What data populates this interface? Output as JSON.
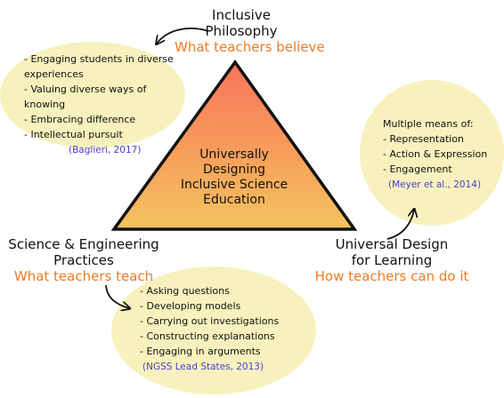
{
  "colors": {
    "triangle_top": "#f9735a",
    "triangle_bottom": "#f5c35e",
    "bubble_fill": "#f8f1bd",
    "accent_orange": "#f07a22",
    "citation_blue": "#4b3fc9",
    "arrow": "#111111"
  },
  "center": {
    "line1": "Universally Designing",
    "line2": "Inclusive Science",
    "line3": "Education"
  },
  "philosophy": {
    "title_line1": "Inclusive",
    "title_line2": "Philosophy",
    "subtitle": "What teachers believe",
    "items": [
      "Engaging students in diverse experiences",
      "Valuing diverse ways of knowing",
      "Embracing difference",
      "Intellectual pursuit"
    ],
    "citation": "(Baglieri, 2017)"
  },
  "udl": {
    "title_line1": "Universal Design",
    "title_line2": "for Learning",
    "subtitle": "How teachers can do it",
    "intro": "Multiple means of:",
    "items": [
      "Representation",
      "Action & Expression",
      "Engagement"
    ],
    "citation": "(Meyer et al., 2014)"
  },
  "practices": {
    "title_line1": "Science & Engineering",
    "title_line2": "Practices",
    "subtitle": "What teachers teach",
    "items": [
      "Asking questions",
      "Developing models",
      "Carrying out investigations",
      "Constructing explanations",
      "Engaging in arguments"
    ],
    "citation": "(NGSS Lead States, 2013)"
  }
}
